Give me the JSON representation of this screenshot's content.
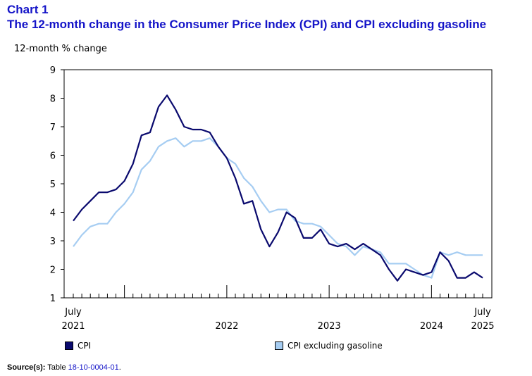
{
  "header": {
    "chart_number": "Chart 1",
    "title": "The 12-month change in the Consumer Price Index (CPI) and CPI excluding gasoline"
  },
  "source": {
    "label": "Source(s):",
    "text": "Table",
    "table_id": "18-10-0004-01",
    "period": "."
  },
  "colors": {
    "cpi": "#0a0a6e",
    "excluding_gasoline": "#a6cdf2",
    "title": "#1414c8"
  },
  "chart_data": {
    "type": "line",
    "ylabel": "12-month % change",
    "ylim": [
      1,
      9
    ],
    "yticks": [
      1,
      2,
      3,
      4,
      5,
      6,
      7,
      8,
      9
    ],
    "x_start": "2021-07",
    "x_end": "2025-07",
    "x_labels": [
      {
        "month": "July",
        "year": "2021"
      },
      {
        "month": "",
        "year": "2022"
      },
      {
        "month": "",
        "year": "2023"
      },
      {
        "month": "",
        "year": "2024"
      },
      {
        "month": "July",
        "year": "2025"
      }
    ],
    "grid": false,
    "legend_position": "bottom",
    "series": [
      {
        "name": "CPI",
        "values": [
          3.7,
          4.1,
          4.4,
          4.7,
          4.7,
          4.8,
          5.1,
          5.7,
          6.7,
          6.8,
          7.7,
          8.1,
          7.6,
          7.0,
          6.9,
          6.9,
          6.8,
          6.3,
          5.9,
          5.2,
          4.3,
          4.4,
          3.4,
          2.8,
          3.3,
          4.0,
          3.8,
          3.1,
          3.1,
          3.4,
          2.9,
          2.8,
          2.9,
          2.7,
          2.9,
          2.7,
          2.5,
          2.0,
          1.6,
          2.0,
          1.9,
          1.8,
          1.9,
          2.6,
          2.3,
          1.7,
          1.7,
          1.9,
          1.7
        ]
      },
      {
        "name": "CPI excluding gasoline",
        "values": [
          2.8,
          3.2,
          3.5,
          3.6,
          3.6,
          4.0,
          4.3,
          4.7,
          5.5,
          5.8,
          6.3,
          6.5,
          6.6,
          6.3,
          6.5,
          6.5,
          6.6,
          6.3,
          5.9,
          5.7,
          5.2,
          4.9,
          4.4,
          4.0,
          4.1,
          4.1,
          3.7,
          3.6,
          3.6,
          3.5,
          3.2,
          2.9,
          2.8,
          2.5,
          2.8,
          2.7,
          2.6,
          2.2,
          2.2,
          2.2,
          2.0,
          1.8,
          1.7,
          2.6,
          2.5,
          2.6,
          2.5,
          2.5,
          2.5
        ]
      }
    ]
  }
}
